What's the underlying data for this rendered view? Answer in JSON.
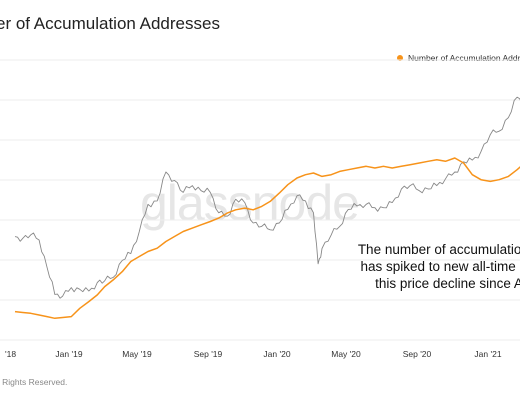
{
  "title": "er of Accumulation Addresses",
  "watermark": "glassnode",
  "footer": "ll Rights Reserved.",
  "annotation": {
    "lines": [
      "The number of accumulation a",
      "has spiked to new all-time hig",
      "this price decline since A"
    ]
  },
  "colors": {
    "series_accumulation": "#f7931a",
    "series_price": "#888888",
    "grid": "#eeeeee",
    "watermark": "#e6e6e6"
  },
  "chart_data": {
    "type": "line",
    "title": "er of Accumulation Addresses",
    "legend": {
      "placement": "top-right",
      "entries": [
        "Number of Accumulation Addresses"
      ]
    },
    "grid": true,
    "x_ticks": [
      "'18",
      "Jan '19",
      "May '19",
      "Sep '19",
      "Jan '20",
      "May '20",
      "Sep '20",
      "Jan '21"
    ],
    "xlim": [
      "2018-09-20",
      "2021-04-01"
    ],
    "series": [
      {
        "name": "Number of Accumulation Addresses",
        "color": "#f7931a",
        "y_relative_range": [
          0,
          1
        ],
        "points": [
          [
            "2018-09-20",
            0.08
          ],
          [
            "2018-10-05",
            0.075
          ],
          [
            "2018-10-20",
            0.07
          ],
          [
            "2018-11-05",
            0.06
          ],
          [
            "2018-11-20",
            0.05
          ],
          [
            "2018-12-05",
            0.04
          ],
          [
            "2018-12-20",
            0.045
          ],
          [
            "2019-01-05",
            0.05
          ],
          [
            "2019-01-20",
            0.1
          ],
          [
            "2019-02-05",
            0.14
          ],
          [
            "2019-02-20",
            0.18
          ],
          [
            "2019-03-05",
            0.23
          ],
          [
            "2019-03-20",
            0.27
          ],
          [
            "2019-04-05",
            0.32
          ],
          [
            "2019-04-20",
            0.38
          ],
          [
            "2019-05-05",
            0.41
          ],
          [
            "2019-05-20",
            0.44
          ],
          [
            "2019-06-05",
            0.46
          ],
          [
            "2019-06-20",
            0.5
          ],
          [
            "2019-07-05",
            0.53
          ],
          [
            "2019-07-20",
            0.56
          ],
          [
            "2019-08-05",
            0.58
          ],
          [
            "2019-08-20",
            0.6
          ],
          [
            "2019-09-05",
            0.62
          ],
          [
            "2019-09-20",
            0.64
          ],
          [
            "2019-10-05",
            0.67
          ],
          [
            "2019-10-20",
            0.69
          ],
          [
            "2019-11-05",
            0.7
          ],
          [
            "2019-11-20",
            0.69
          ],
          [
            "2019-12-05",
            0.71
          ],
          [
            "2019-12-20",
            0.74
          ],
          [
            "2020-01-05",
            0.79
          ],
          [
            "2020-01-20",
            0.84
          ],
          [
            "2020-02-05",
            0.88
          ],
          [
            "2020-02-20",
            0.9
          ],
          [
            "2020-03-05",
            0.91
          ],
          [
            "2020-03-20",
            0.89
          ],
          [
            "2020-04-05",
            0.9
          ],
          [
            "2020-04-20",
            0.92
          ],
          [
            "2020-05-05",
            0.93
          ],
          [
            "2020-05-20",
            0.94
          ],
          [
            "2020-06-05",
            0.95
          ],
          [
            "2020-06-20",
            0.94
          ],
          [
            "2020-07-05",
            0.95
          ],
          [
            "2020-07-20",
            0.94
          ],
          [
            "2020-08-05",
            0.95
          ],
          [
            "2020-08-20",
            0.96
          ],
          [
            "2020-09-05",
            0.97
          ],
          [
            "2020-09-20",
            0.98
          ],
          [
            "2020-10-05",
            0.99
          ],
          [
            "2020-10-20",
            0.98
          ],
          [
            "2020-11-05",
            1.0
          ],
          [
            "2020-11-20",
            0.97
          ],
          [
            "2020-12-05",
            0.9
          ],
          [
            "2020-12-20",
            0.87
          ],
          [
            "2021-01-05",
            0.86
          ],
          [
            "2021-01-20",
            0.87
          ],
          [
            "2021-02-05",
            0.89
          ],
          [
            "2021-02-20",
            0.93
          ],
          [
            "2021-03-05",
            0.97
          ],
          [
            "2021-03-20",
            0.99
          ],
          [
            "2021-04-01",
            1.0
          ]
        ]
      },
      {
        "color": "#888888",
        "y_scale": "log",
        "y_relative_range": [
          0,
          1
        ],
        "points": [
          [
            "2018-09-20",
            0.52
          ],
          [
            "2018-10-05",
            0.51
          ],
          [
            "2018-10-20",
            0.53
          ],
          [
            "2018-11-05",
            0.5
          ],
          [
            "2018-11-20",
            0.34
          ],
          [
            "2018-12-05",
            0.18
          ],
          [
            "2018-12-20",
            0.17
          ],
          [
            "2019-01-05",
            0.22
          ],
          [
            "2019-01-20",
            0.21
          ],
          [
            "2019-02-05",
            0.2
          ],
          [
            "2019-02-20",
            0.25
          ],
          [
            "2019-03-05",
            0.26
          ],
          [
            "2019-03-20",
            0.28
          ],
          [
            "2019-04-05",
            0.38
          ],
          [
            "2019-04-20",
            0.42
          ],
          [
            "2019-05-05",
            0.55
          ],
          [
            "2019-05-20",
            0.71
          ],
          [
            "2019-06-05",
            0.73
          ],
          [
            "2019-06-20",
            0.9
          ],
          [
            "2019-07-05",
            0.85
          ],
          [
            "2019-07-20",
            0.78
          ],
          [
            "2019-08-05",
            0.82
          ],
          [
            "2019-08-20",
            0.79
          ],
          [
            "2019-09-05",
            0.78
          ],
          [
            "2019-09-20",
            0.66
          ],
          [
            "2019-10-05",
            0.64
          ],
          [
            "2019-10-20",
            0.74
          ],
          [
            "2019-11-05",
            0.72
          ],
          [
            "2019-11-20",
            0.6
          ],
          [
            "2019-12-05",
            0.58
          ],
          [
            "2019-12-20",
            0.56
          ],
          [
            "2020-01-05",
            0.6
          ],
          [
            "2020-01-20",
            0.68
          ],
          [
            "2020-02-05",
            0.76
          ],
          [
            "2020-02-20",
            0.73
          ],
          [
            "2020-03-05",
            0.66
          ],
          [
            "2020-03-13",
            0.36
          ],
          [
            "2020-03-20",
            0.45
          ],
          [
            "2020-04-05",
            0.53
          ],
          [
            "2020-04-20",
            0.58
          ],
          [
            "2020-05-05",
            0.68
          ],
          [
            "2020-05-20",
            0.7
          ],
          [
            "2020-06-05",
            0.71
          ],
          [
            "2020-06-20",
            0.69
          ],
          [
            "2020-07-05",
            0.69
          ],
          [
            "2020-07-20",
            0.72
          ],
          [
            "2020-08-05",
            0.8
          ],
          [
            "2020-08-20",
            0.82
          ],
          [
            "2020-09-05",
            0.79
          ],
          [
            "2020-09-20",
            0.8
          ],
          [
            "2020-10-05",
            0.82
          ],
          [
            "2020-10-20",
            0.86
          ],
          [
            "2020-11-05",
            0.9
          ],
          [
            "2020-11-20",
            0.96
          ],
          [
            "2020-12-05",
            0.97
          ],
          [
            "2020-12-20",
            1.02
          ],
          [
            "2021-01-05",
            1.12
          ],
          [
            "2021-01-20",
            1.14
          ],
          [
            "2021-02-05",
            1.22
          ],
          [
            "2021-02-20",
            1.34
          ],
          [
            "2021-03-05",
            1.3
          ],
          [
            "2021-03-20",
            1.38
          ],
          [
            "2021-04-01",
            1.32
          ]
        ]
      }
    ]
  }
}
